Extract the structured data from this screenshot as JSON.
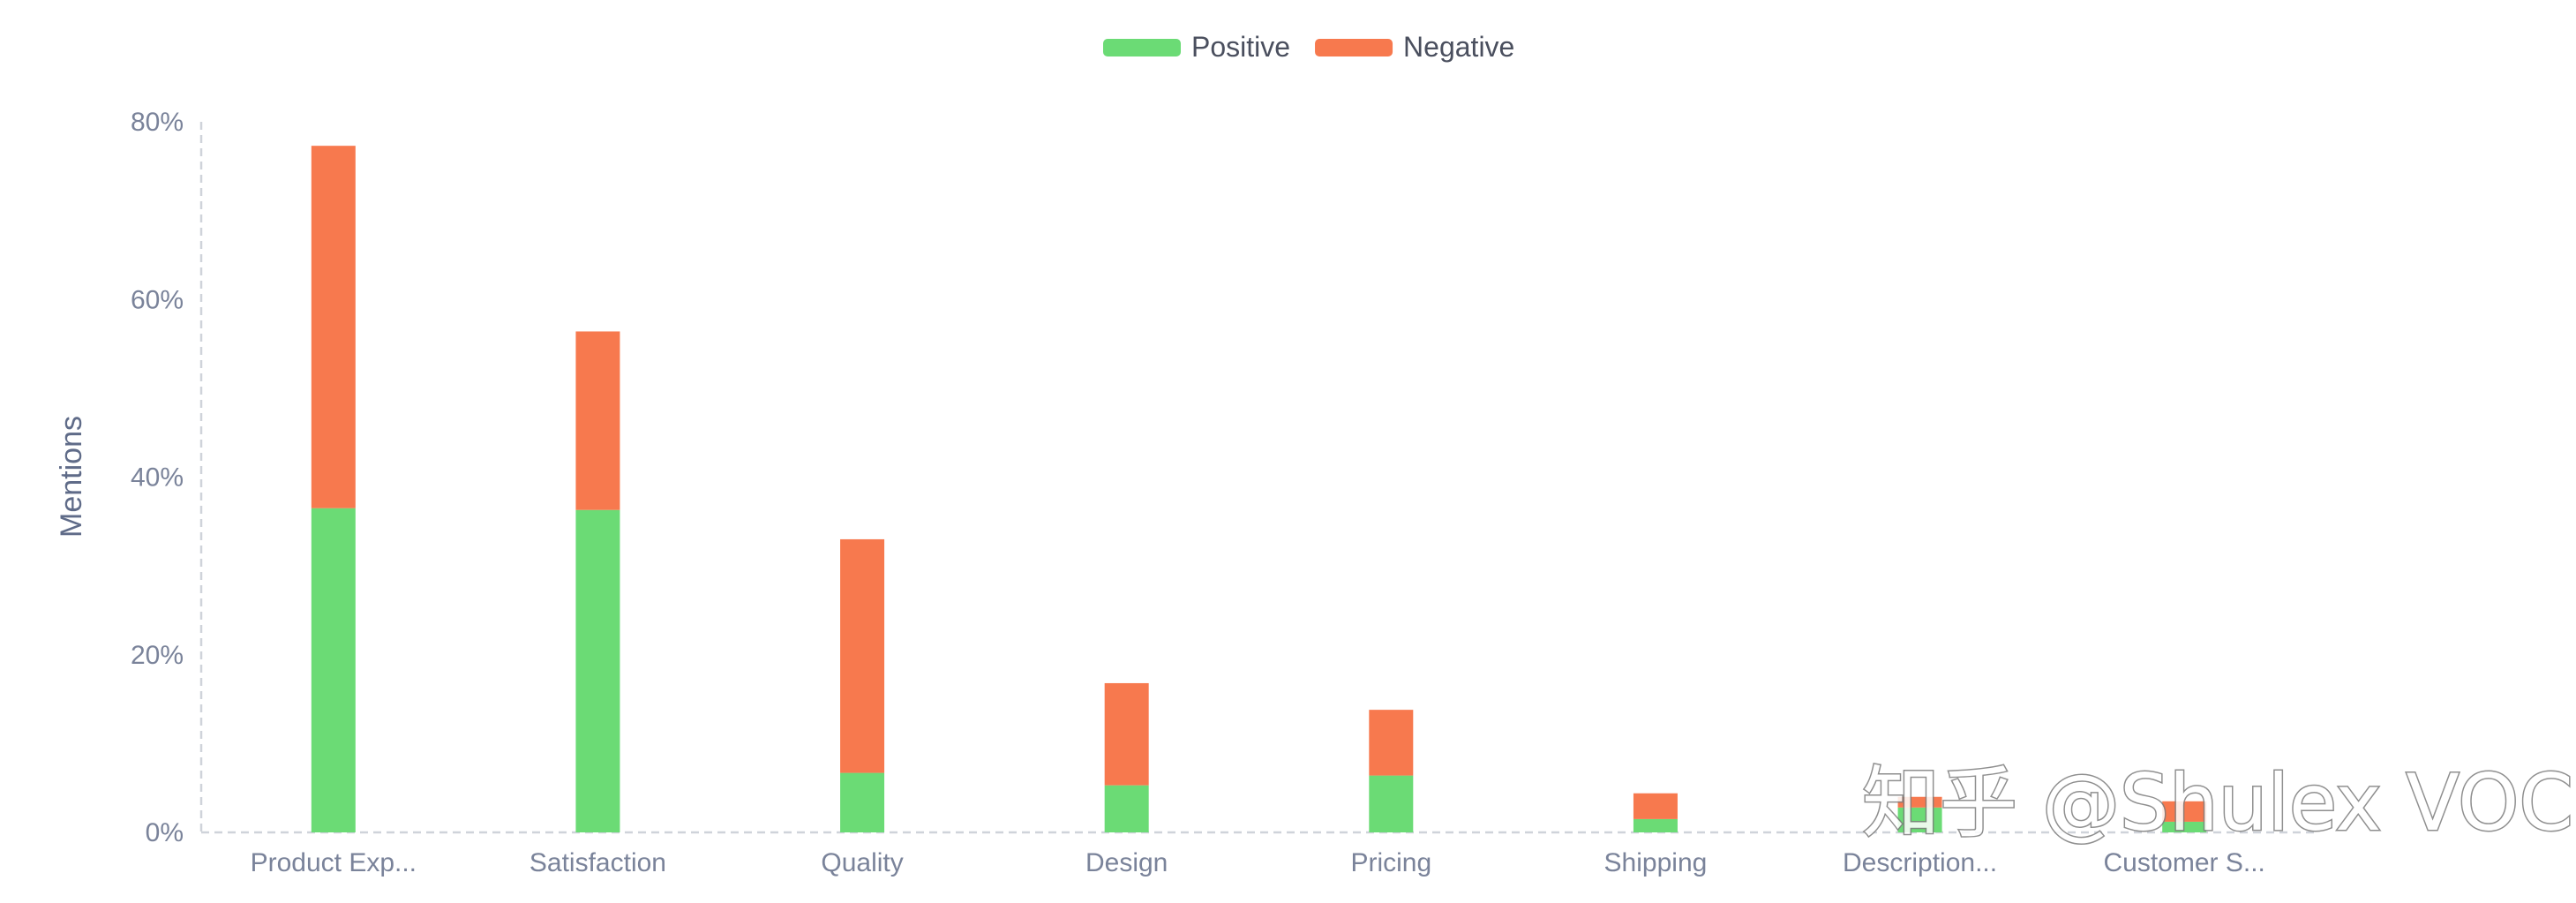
{
  "chart_data": {
    "type": "bar",
    "stacked": true,
    "categories": [
      "Product Exp...",
      "Satisfaction",
      "Quality",
      "Design",
      "Pricing",
      "Shipping",
      "Description...",
      "Customer S..."
    ],
    "series": [
      {
        "name": "Positive",
        "color": "#6bdb75",
        "values": [
          36.5,
          36.3,
          6.7,
          5.3,
          6.4,
          1.5,
          2.8,
          1.2
        ]
      },
      {
        "name": "Negative",
        "color": "#f7794e",
        "values": [
          40.8,
          20.1,
          26.3,
          11.5,
          7.4,
          2.9,
          1.2,
          2.3
        ]
      }
    ],
    "xlabel": "",
    "ylabel": "Mentions",
    "ylim": [
      0,
      80
    ],
    "yticks": [
      "0%",
      "20%",
      "40%",
      "60%",
      "80%"
    ],
    "legend_position": "top-center",
    "grid": false
  },
  "watermark": {
    "text": "知乎 @Shulex VOC"
  }
}
